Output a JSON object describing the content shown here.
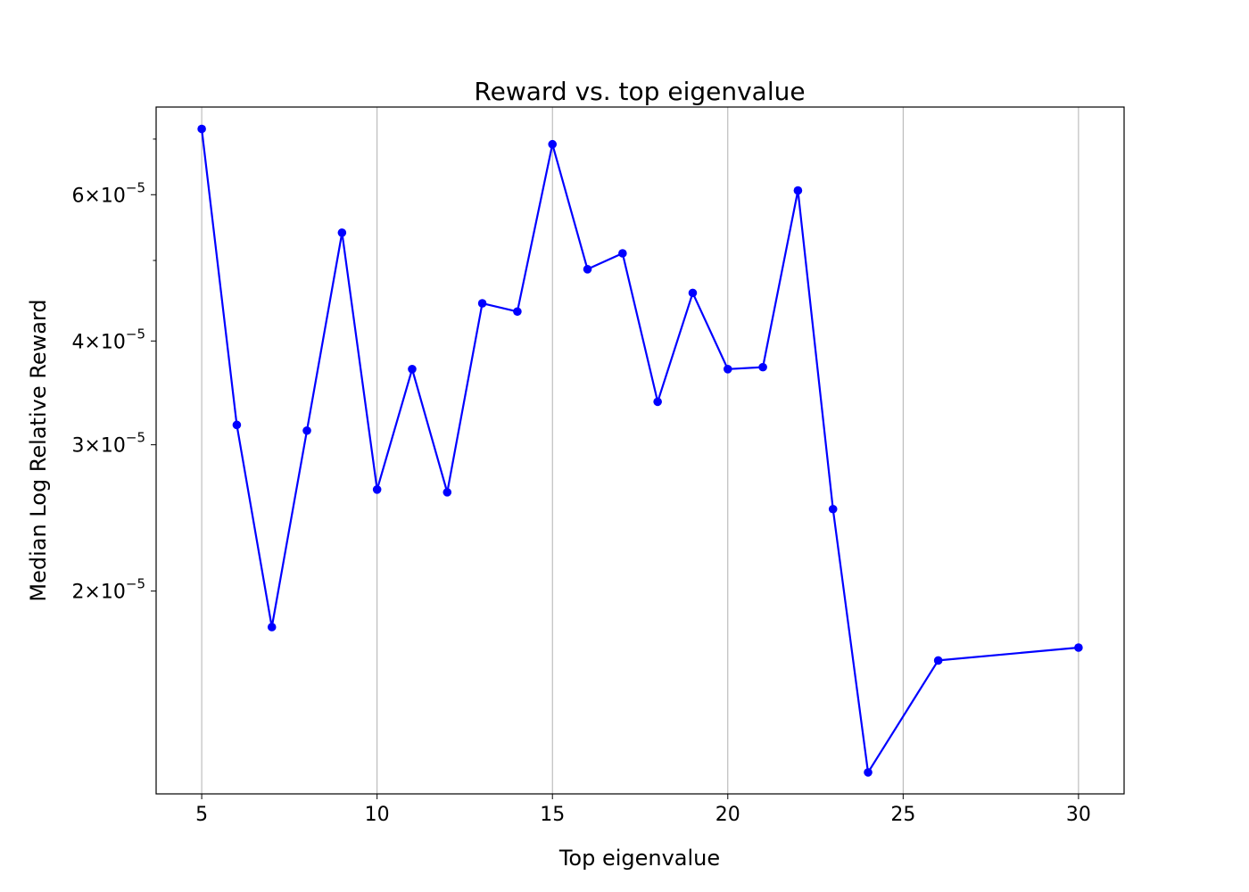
{
  "chart_data": {
    "type": "line",
    "title": "Reward vs. top eigenvalue",
    "xlabel": "Top eigenvalue",
    "ylabel": "Median Log Relative Reward",
    "yscale": "log",
    "xlim": [
      3.7,
      31.3
    ],
    "ylim": [
      1.14e-05,
      7.65e-05
    ],
    "grid": "x-major-vertical",
    "x_ticks": [
      {
        "value": 5,
        "label": "5"
      },
      {
        "value": 10,
        "label": "10"
      },
      {
        "value": 15,
        "label": "15"
      },
      {
        "value": 20,
        "label": "20"
      },
      {
        "value": 25,
        "label": "25"
      },
      {
        "value": 30,
        "label": "30"
      }
    ],
    "y_ticks": [
      {
        "value": 2e-05,
        "mantissa": "2",
        "times": "×",
        "base": "10",
        "exponent": "−5"
      },
      {
        "value": 3e-05,
        "mantissa": "3",
        "times": "×",
        "base": "10",
        "exponent": "−5"
      },
      {
        "value": 4e-05,
        "mantissa": "4",
        "times": "×",
        "base": "10",
        "exponent": "−5"
      },
      {
        "value": 6e-05,
        "mantissa": "6",
        "times": "×",
        "base": "10",
        "exponent": "−5"
      }
    ],
    "y_minor_ticks": [
      5e-05,
      7e-05
    ],
    "series": [
      {
        "color": "#0000ff",
        "x": [
          5,
          6,
          7,
          8,
          9,
          10,
          11,
          12,
          13,
          14,
          15,
          16,
          17,
          18,
          19,
          20,
          21,
          22,
          23,
          24,
          26,
          30
        ],
        "y": [
          7.2e-05,
          3.17e-05,
          1.81e-05,
          3.12e-05,
          5.4e-05,
          2.65e-05,
          3.7e-05,
          2.63e-05,
          4.44e-05,
          4.34e-05,
          6.9e-05,
          4.88e-05,
          5.1e-05,
          3.38e-05,
          4.57e-05,
          3.7e-05,
          3.72e-05,
          6.07e-05,
          2.51e-05,
          1.21e-05,
          1.65e-05,
          1.71e-05
        ]
      }
    ]
  }
}
